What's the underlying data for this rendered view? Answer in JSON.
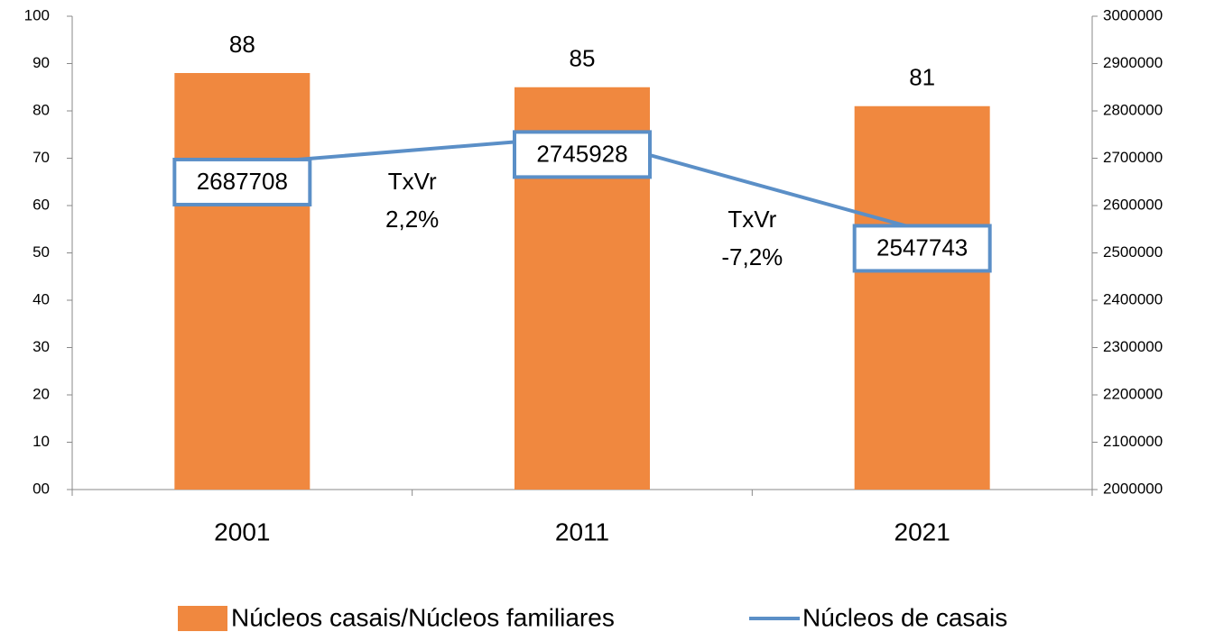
{
  "chart_data": {
    "type": "bar-line",
    "categories": [
      "2001",
      "2011",
      "2021"
    ],
    "series": [
      {
        "name": "Núcleos casais/Núcleos familiares",
        "type": "bar",
        "color": "#f0883f",
        "values": [
          88,
          85,
          81
        ]
      },
      {
        "name": "Núcleos de casais",
        "type": "line",
        "axis": "y2",
        "color": "#5b8fc7",
        "values": [
          2687708,
          2745928,
          2547743
        ]
      }
    ],
    "ylim": [
      0,
      100
    ],
    "yticks": [
      {
        "value": 0,
        "label": "00"
      },
      10,
      20,
      30,
      40,
      50,
      60,
      70,
      80,
      90,
      100
    ],
    "y2lim": [
      2000000,
      3000000
    ],
    "y2ticks": [
      2000000,
      2100000,
      2200000,
      2300000,
      2400000,
      2500000,
      2600000,
      2700000,
      2800000,
      2900000,
      3000000
    ],
    "annotations": [
      {
        "lines": [
          "TxVr",
          "2,2%"
        ]
      },
      {
        "lines": [
          "TxVr",
          "-7,2%"
        ]
      }
    ],
    "legend": "bottom"
  }
}
